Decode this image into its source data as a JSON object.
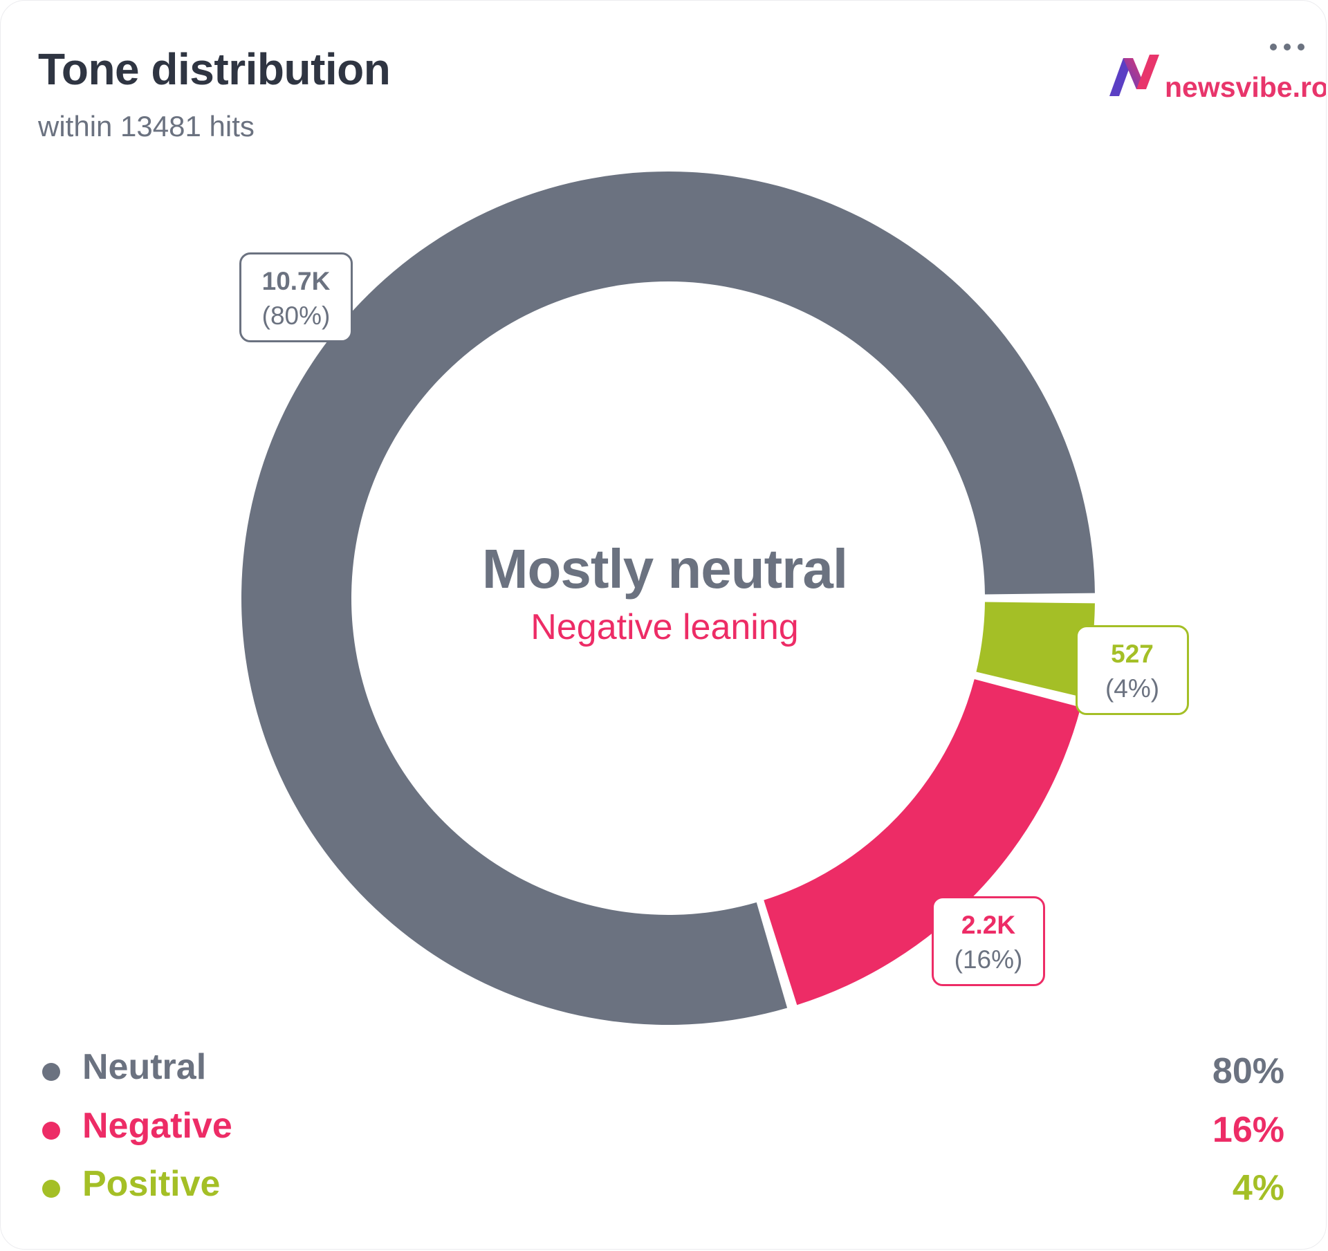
{
  "header": {
    "title": "Tone distribution",
    "subtitle": "within 13481 hits",
    "logo_text": "newsvibe.ro",
    "menu_icon": "more-horizontal-icon"
  },
  "center": {
    "title": "Mostly neutral",
    "subtitle": "Negative leaning"
  },
  "colors": {
    "neutral": "#6b7280",
    "negative": "#ed2c66",
    "positive": "#a4bf26",
    "logo_pink": "#e8356b",
    "logo_purple": "#5b3fc4"
  },
  "chart_data": {
    "type": "pie",
    "donut": true,
    "categories": [
      "Neutral",
      "Negative",
      "Positive"
    ],
    "values": [
      10700,
      2200,
      527
    ],
    "percentages": [
      80,
      16,
      4
    ],
    "value_labels": [
      "10.7K",
      "2.2K",
      "527"
    ],
    "percent_labels": [
      "(80%)",
      "(16%)",
      "(4%)"
    ],
    "legend_values": [
      "80%",
      "16%",
      "4%"
    ],
    "legend_position": "bottom"
  }
}
